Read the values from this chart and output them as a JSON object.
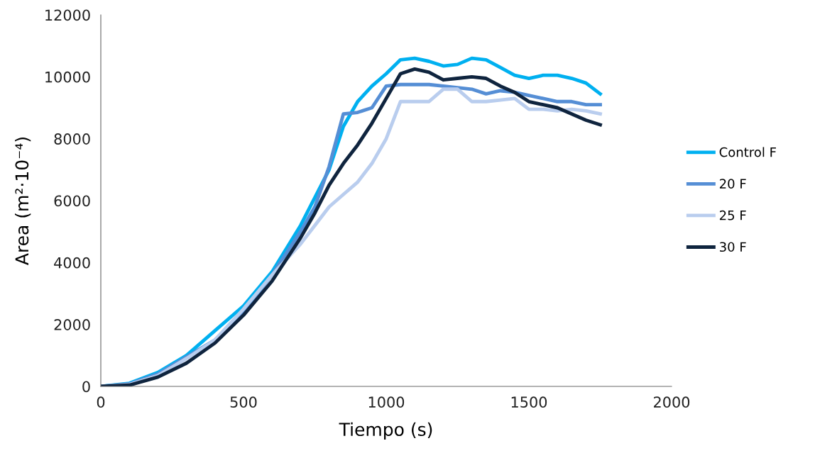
{
  "chart_data": {
    "type": "line",
    "xlabel": "Tiempo (s)",
    "ylabel": "Area (m²·10⁻⁴)",
    "xlim": [
      0,
      2000
    ],
    "xticks": [
      0,
      500,
      1000,
      1500,
      2000
    ],
    "ylim": [
      0,
      12000
    ],
    "yticks": [
      0,
      2000,
      4000,
      6000,
      8000,
      10000,
      12000
    ],
    "grid": false,
    "legend": "right",
    "marker": "none",
    "line_style": "solid",
    "x": [
      0,
      100,
      200,
      300,
      400,
      500,
      600,
      700,
      750,
      800,
      850,
      900,
      950,
      1000,
      1050,
      1100,
      1150,
      1200,
      1250,
      1300,
      1350,
      1400,
      1450,
      1500,
      1550,
      1600,
      1650,
      1700,
      1750
    ],
    "series": [
      {
        "name": "Control F",
        "color": "#00b0f0",
        "values": [
          0,
          100,
          450,
          1000,
          1800,
          2600,
          3700,
          5200,
          6100,
          7000,
          8400,
          9200,
          9700,
          10100,
          10550,
          10600,
          10500,
          10350,
          10400,
          10600,
          10550,
          10300,
          10050,
          9950,
          10050,
          10050,
          9950,
          9800,
          9450
        ]
      },
      {
        "name": "20 F",
        "color": "#558ed5",
        "values": [
          0,
          80,
          400,
          950,
          1500,
          2400,
          3600,
          5000,
          5800,
          7100,
          8800,
          8850,
          9000,
          9700,
          9750,
          9750,
          9750,
          9700,
          9650,
          9600,
          9450,
          9550,
          9500,
          9400,
          9300,
          9200,
          9200,
          9100,
          9100
        ]
      },
      {
        "name": "25 F",
        "color": "#b9cdee",
        "values": [
          0,
          60,
          350,
          900,
          1500,
          2500,
          3600,
          4600,
          5200,
          5800,
          6200,
          6600,
          7200,
          8000,
          9200,
          9200,
          9200,
          9600,
          9600,
          9200,
          9200,
          9250,
          9300,
          8950,
          8950,
          8900,
          8950,
          8900,
          8800
        ]
      },
      {
        "name": "30 F",
        "color": "#0f243e",
        "values": [
          0,
          40,
          300,
          750,
          1400,
          2300,
          3400,
          4800,
          5600,
          6500,
          7200,
          7800,
          8500,
          9300,
          10100,
          10250,
          10150,
          9900,
          9950,
          10000,
          9950,
          9700,
          9500,
          9200,
          9100,
          9000,
          8800,
          8600,
          8450
        ]
      }
    ]
  }
}
